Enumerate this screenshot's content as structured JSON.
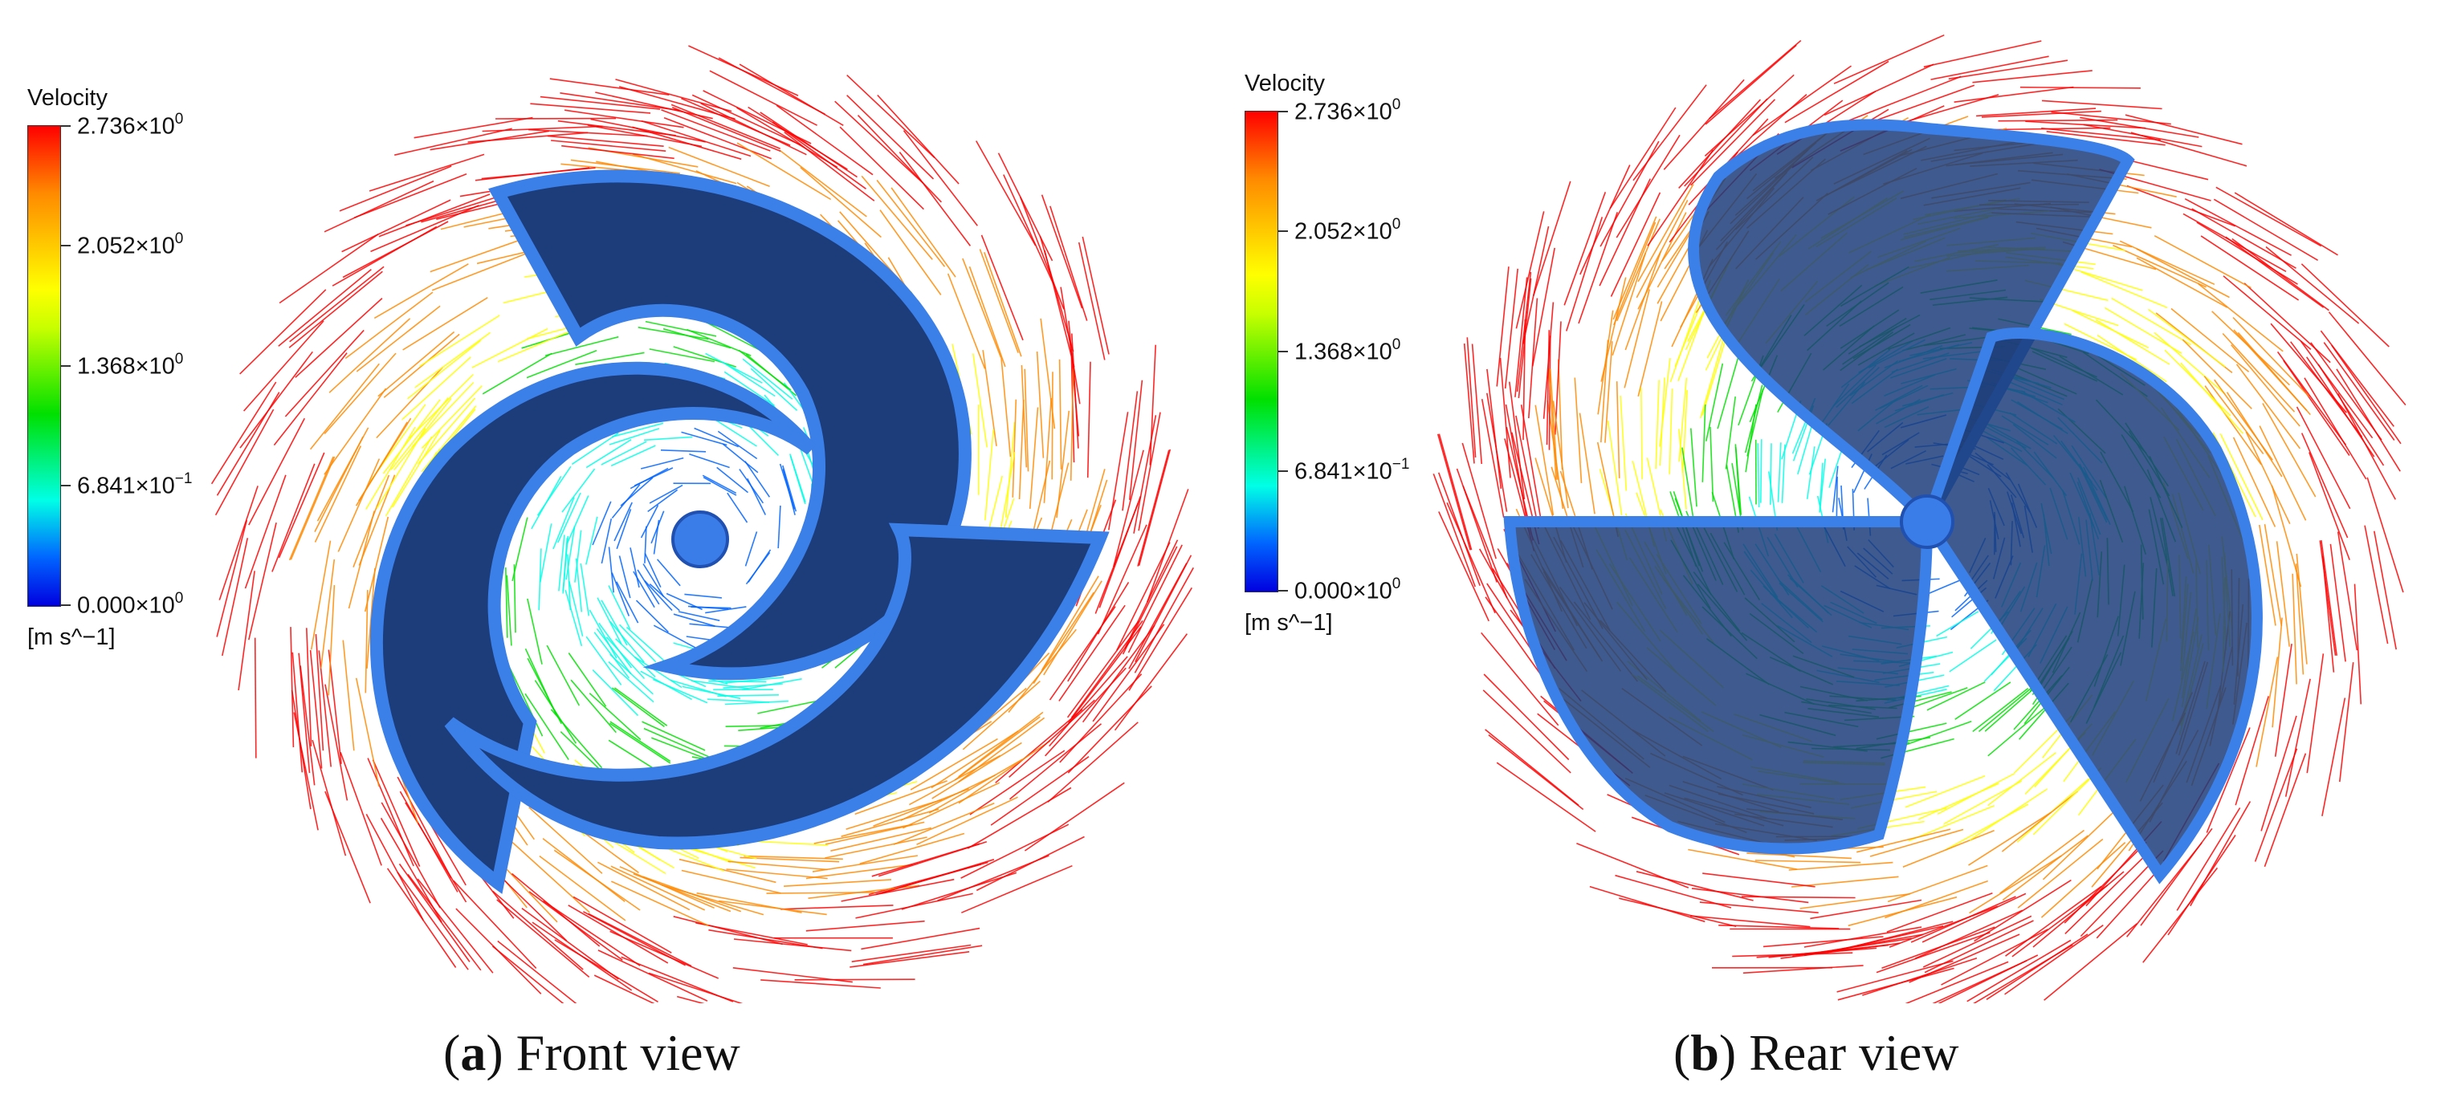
{
  "legend": {
    "title": "Velocity",
    "units": "[m s^−1]",
    "ticks": [
      {
        "mant": "2.736×10",
        "exp": "0"
      },
      {
        "mant": "2.052×10",
        "exp": "0"
      },
      {
        "mant": "1.368×10",
        "exp": "0"
      },
      {
        "mant": "6.841×10",
        "exp": "−1"
      },
      {
        "mant": "0.000×10",
        "exp": "0"
      }
    ],
    "colors": [
      "#ff0000",
      "#ff8a00",
      "#ffff00",
      "#00e000",
      "#00ffe6",
      "#0064ff",
      "#0000e0"
    ]
  },
  "panels": [
    {
      "letter": "a",
      "caption": "Front view"
    },
    {
      "letter": "b",
      "caption": "Rear view"
    }
  ],
  "colors": {
    "blade": "#2f6fd8",
    "blade_edge": "#1e4fb0",
    "hub": "#3a7de8",
    "background": "#ffffff"
  }
}
